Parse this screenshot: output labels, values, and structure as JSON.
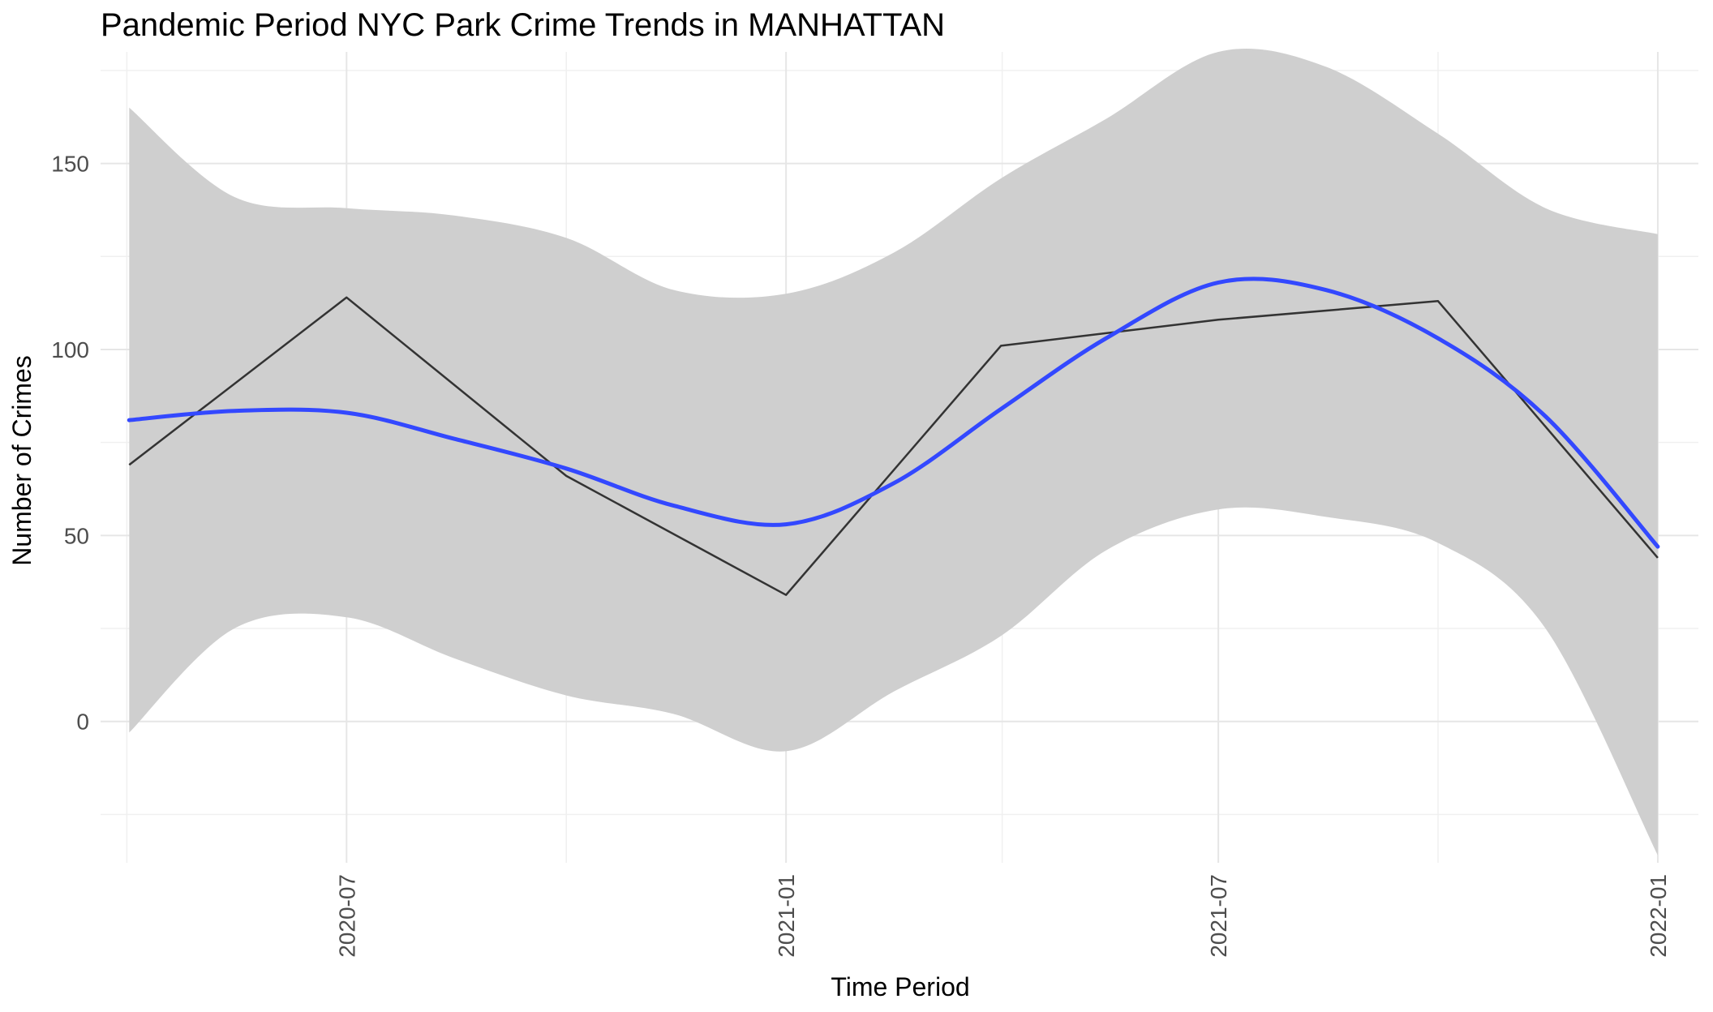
{
  "chart_data": {
    "type": "line",
    "title": "Pandemic Period NYC Park Crime Trends in MANHATTAN",
    "xlabel": "Time Period",
    "ylabel": "Number of Crimes",
    "x_ticks": [
      "2020-07",
      "2021-01",
      "2021-07",
      "2022-01"
    ],
    "y_ticks": [
      0,
      50,
      100,
      150
    ],
    "xlim": [
      "2020-03-20",
      "2022-01-18"
    ],
    "ylim": [
      -38,
      180
    ],
    "grid": true,
    "series": [
      {
        "color": "#333333",
        "points": [
          {
            "x": "2020-04-01",
            "y": 69
          },
          {
            "x": "2020-07-01",
            "y": 114
          },
          {
            "x": "2020-10-01",
            "y": 66
          },
          {
            "x": "2021-01-01",
            "y": 34
          },
          {
            "x": "2021-04-01",
            "y": 101
          },
          {
            "x": "2021-07-01",
            "y": 108
          },
          {
            "x": "2021-10-01",
            "y": 113
          },
          {
            "x": "2022-01-01",
            "y": 44
          }
        ]
      }
    ],
    "smooth": {
      "color": "#3348ff",
      "band_color": "#cfcfcf",
      "points": [
        {
          "x": "2020-04-01",
          "y": 81,
          "lower": -3,
          "upper": 165
        },
        {
          "x": "2020-05-15",
          "y": 83.5,
          "lower": 25,
          "upper": 141
        },
        {
          "x": "2020-07-01",
          "y": 83,
          "lower": 28,
          "upper": 138
        },
        {
          "x": "2020-08-15",
          "y": 76,
          "lower": 17,
          "upper": 136
        },
        {
          "x": "2020-10-01",
          "y": 68,
          "lower": 7,
          "upper": 130
        },
        {
          "x": "2020-11-15",
          "y": 58,
          "lower": 2,
          "upper": 116
        },
        {
          "x": "2021-01-01",
          "y": 53,
          "lower": -8,
          "upper": 115
        },
        {
          "x": "2021-02-15",
          "y": 64,
          "lower": 8,
          "upper": 126
        },
        {
          "x": "2021-04-01",
          "y": 84,
          "lower": 23,
          "upper": 146
        },
        {
          "x": "2021-05-15",
          "y": 103,
          "lower": 46,
          "upper": 162
        },
        {
          "x": "2021-07-01",
          "y": 118,
          "lower": 57,
          "upper": 180
        },
        {
          "x": "2021-08-15",
          "y": 116,
          "lower": 55,
          "upper": 176
        },
        {
          "x": "2021-10-01",
          "y": 103,
          "lower": 48,
          "upper": 158
        },
        {
          "x": "2021-11-15",
          "y": 82,
          "lower": 25,
          "upper": 138
        },
        {
          "x": "2022-01-01",
          "y": 47,
          "lower": -36,
          "upper": 131
        }
      ]
    }
  }
}
